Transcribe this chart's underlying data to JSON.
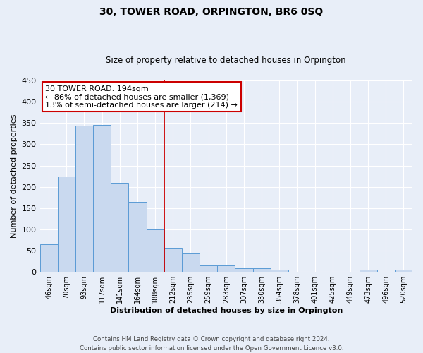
{
  "title": "30, TOWER ROAD, ORPINGTON, BR6 0SQ",
  "subtitle": "Size of property relative to detached houses in Orpington",
  "xlabel": "Distribution of detached houses by size in Orpington",
  "ylabel": "Number of detached properties",
  "bar_labels": [
    "46sqm",
    "70sqm",
    "93sqm",
    "117sqm",
    "141sqm",
    "164sqm",
    "188sqm",
    "212sqm",
    "235sqm",
    "259sqm",
    "283sqm",
    "307sqm",
    "330sqm",
    "354sqm",
    "378sqm",
    "401sqm",
    "425sqm",
    "449sqm",
    "473sqm",
    "496sqm",
    "520sqm"
  ],
  "bar_values": [
    65,
    224,
    343,
    345,
    210,
    165,
    100,
    57,
    43,
    16,
    16,
    8,
    8,
    5,
    1,
    1,
    0,
    0,
    5,
    0,
    5
  ],
  "bar_color": "#c9d9ef",
  "bar_edge_color": "#5b9bd5",
  "property_label": "30 TOWER ROAD: 194sqm",
  "annotation_line1": "← 86% of detached houses are smaller (1,369)",
  "annotation_line2": "13% of semi-detached houses are larger (214) →",
  "annotation_box_color": "#ffffff",
  "annotation_box_edge": "#cc0000",
  "vline_color": "#cc0000",
  "vline_x_index": 6.5,
  "ylim": [
    0,
    450
  ],
  "yticks": [
    0,
    50,
    100,
    150,
    200,
    250,
    300,
    350,
    400,
    450
  ],
  "footer_line1": "Contains HM Land Registry data © Crown copyright and database right 2024.",
  "footer_line2": "Contains public sector information licensed under the Open Government Licence v3.0.",
  "bg_color": "#e8eef8",
  "plot_bg_color": "#e8eef8"
}
